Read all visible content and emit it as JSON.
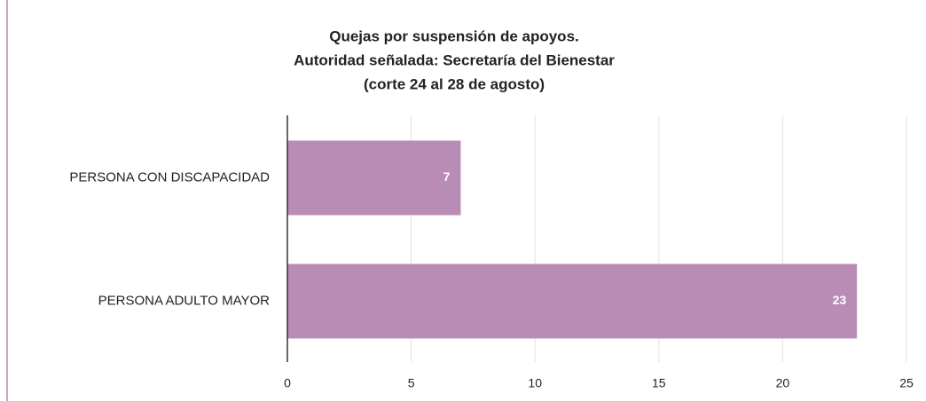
{
  "chart_data": {
    "type": "hbar",
    "title": [
      "Quejas por suspensión de apoyos.",
      "Autoridad señalada: Secretaría del Bienestar",
      "(corte 24 al 28 de agosto)"
    ],
    "categories": [
      "PERSONA CON DISCAPACIDAD",
      "PERSONA ADULTO MAYOR"
    ],
    "values": [
      7,
      23
    ],
    "color": "#b98cb5",
    "xlim": [
      0,
      25
    ],
    "xticks": [
      0,
      5,
      10,
      15,
      20,
      25
    ],
    "grid": true
  }
}
